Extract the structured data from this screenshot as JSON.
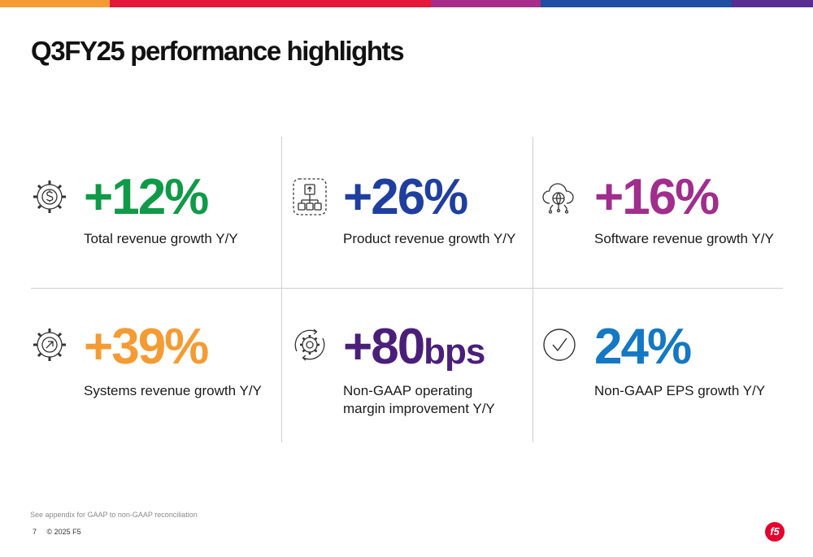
{
  "colors": {
    "topbar": [
      "#f59b33",
      "#e31937",
      "#a82c8a",
      "#1f4ea2",
      "#5a2d91"
    ],
    "green": "#0f9a48",
    "blue": "#1f3f9e",
    "magenta": "#a12d8c",
    "orange": "#f59b33",
    "purple": "#4a1f7a",
    "sky": "#1478c3",
    "logo": "#e4002b"
  },
  "slide": {
    "title": "Q3FY25 performance highlights",
    "footnote": "See appendix for GAAP to non-GAAP reconciliation",
    "page_number": "7",
    "copyright": "© 2025 F5",
    "logo_text": "f5"
  },
  "highlights": [
    {
      "icon": "gear-dollar-icon",
      "value": "+12%",
      "unit": "",
      "label_lines": [
        "Total revenue growth Y/Y",
        ""
      ]
    },
    {
      "icon": "product-flow-icon",
      "value": "+26%",
      "unit": "",
      "label_lines": [
        "Product revenue growth Y/Y",
        ""
      ]
    },
    {
      "icon": "cloud-globe-icon",
      "value": "+16%",
      "unit": "",
      "label_lines": [
        "Software revenue growth Y/Y",
        ""
      ]
    },
    {
      "icon": "gear-arrow-icon",
      "value": "+39%",
      "unit": "",
      "label_lines": [
        "Systems revenue growth Y/Y",
        ""
      ]
    },
    {
      "icon": "gear-cycle-icon",
      "value": "+80",
      "unit": "bps",
      "label_lines": [
        "Non-GAAP operating",
        "margin improvement Y/Y"
      ]
    },
    {
      "icon": "checkmark-circle-icon",
      "value": "24%",
      "unit": "",
      "label_lines": [
        "Non-GAAP EPS growth Y/Y",
        ""
      ]
    }
  ]
}
